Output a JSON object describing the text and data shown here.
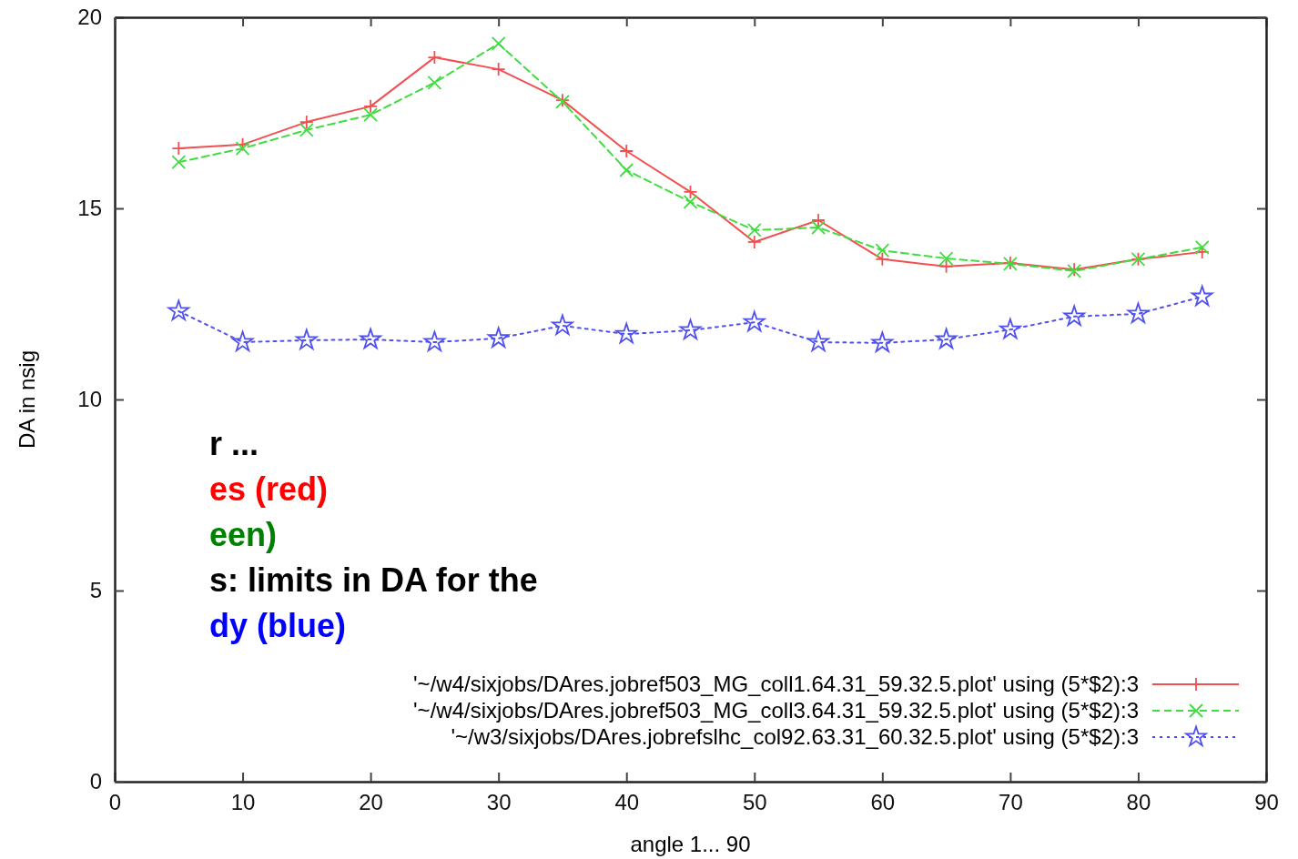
{
  "chart_data": {
    "type": "line",
    "xlabel": "angle 1... 90",
    "ylabel": "DA in nsig",
    "xlim": [
      0,
      90
    ],
    "xticks": [
      0,
      10,
      20,
      30,
      40,
      50,
      60,
      70,
      80,
      90
    ],
    "ylim": [
      0,
      20
    ],
    "yticks": [
      0,
      5,
      10,
      15,
      20
    ],
    "grid": false,
    "legend": "bottom right",
    "x": [
      5,
      10,
      15,
      20,
      25,
      30,
      35,
      40,
      45,
      50,
      55,
      60,
      65,
      70,
      75,
      80,
      85
    ],
    "series": [
      {
        "name": "'~/w4/sixjobs/DAres.jobref503_MG_coll1.64.31_59.32.5.plot' using (5*$2):3",
        "color": "#f05050",
        "marker": "cross",
        "line_style": "solid",
        "values": [
          16.57,
          16.67,
          17.26,
          17.67,
          18.95,
          18.64,
          17.83,
          16.5,
          15.43,
          14.12,
          14.69,
          13.67,
          13.48,
          13.57,
          13.4,
          13.67,
          13.86
        ]
      },
      {
        "name": "'~/w4/sixjobs/DAres.jobref503_MG_coll3.64.31_59.32.5.plot' using (5*$2):3",
        "color": "#40dd40",
        "marker": "x",
        "line_style": "dashed",
        "values": [
          16.21,
          16.57,
          17.05,
          17.45,
          18.29,
          19.31,
          17.79,
          16.0,
          15.17,
          14.43,
          14.5,
          13.9,
          13.69,
          13.55,
          13.36,
          13.67,
          13.98
        ]
      },
      {
        "name": "'~/w3/sixjobs/DAres.jobrefslhc_col92.63.31_60.32.5.plot' using (5*$2):3",
        "color": "#5050f0",
        "marker": "star",
        "line_style": "dotted",
        "values": [
          12.31,
          11.5,
          11.55,
          11.57,
          11.5,
          11.6,
          11.93,
          11.71,
          11.81,
          12.02,
          11.5,
          11.48,
          11.57,
          11.83,
          12.17,
          12.24,
          12.69
        ]
      }
    ],
    "annotations": [
      "r ...",
      "es (red)",
      "een)",
      "s: limits in DA for the",
      "dy (blue)"
    ]
  }
}
